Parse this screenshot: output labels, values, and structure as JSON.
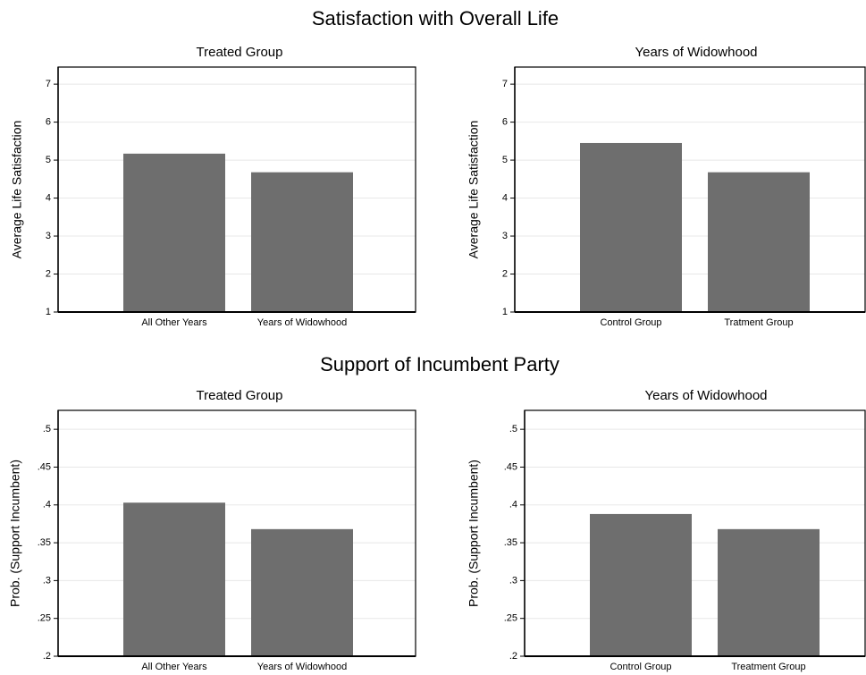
{
  "section_titles": [
    "Satisfaction with Overall Life",
    "Support of Incumbent Party"
  ],
  "chart_data": [
    {
      "type": "bar",
      "title": "Treated Group",
      "y_label": "Average Life Satisfaction",
      "categories": [
        "All Other Years",
        "Years of Widowhood"
      ],
      "values": [
        5.17,
        4.68
      ],
      "color": "#6e6e6e",
      "ylim": [
        1,
        7.45
      ],
      "yticks": [
        1,
        2,
        3,
        4,
        5,
        6,
        7
      ],
      "grid": true
    },
    {
      "type": "bar",
      "title": "Years of Widowhood",
      "y_label": "Average Life Satisfaction",
      "categories": [
        "Control Group",
        "Tratment Group"
      ],
      "values": [
        5.45,
        4.68
      ],
      "color": "#6e6e6e",
      "ylim": [
        1,
        7.45
      ],
      "yticks": [
        1,
        2,
        3,
        4,
        5,
        6,
        7
      ],
      "grid": true
    },
    {
      "type": "bar",
      "title": "Treated Group",
      "y_label": "Prob. (Support Incumbent)",
      "categories": [
        "All Other Years",
        "Years of Widowhood"
      ],
      "values": [
        0.403,
        0.368
      ],
      "color": "#6e6e6e",
      "ylim": [
        0.2,
        0.525
      ],
      "yticks": [
        {
          "value": 0.2,
          "label": ".2"
        },
        {
          "value": 0.25,
          "label": ".25"
        },
        {
          "value": 0.3,
          "label": ".3"
        },
        {
          "value": 0.35,
          "label": ".35"
        },
        {
          "value": 0.4,
          "label": ".4"
        },
        {
          "value": 0.45,
          "label": ".45"
        },
        {
          "value": 0.5,
          "label": ".5"
        }
      ],
      "grid": true
    },
    {
      "type": "bar",
      "title": "Years of Widowhood",
      "y_label": "Prob. (Support Incumbent)",
      "categories": [
        "Control Group",
        "Treatment Group"
      ],
      "values": [
        0.388,
        0.368
      ],
      "color": "#6e6e6e",
      "ylim": [
        0.2,
        0.525
      ],
      "yticks": [
        {
          "value": 0.2,
          "label": ".2"
        },
        {
          "value": 0.25,
          "label": ".25"
        },
        {
          "value": 0.3,
          "label": ".3"
        },
        {
          "value": 0.35,
          "label": ".35"
        },
        {
          "value": 0.4,
          "label": ".4"
        },
        {
          "value": 0.45,
          "label": ".45"
        },
        {
          "value": 0.5,
          "label": ".5"
        }
      ],
      "grid": true
    }
  ]
}
